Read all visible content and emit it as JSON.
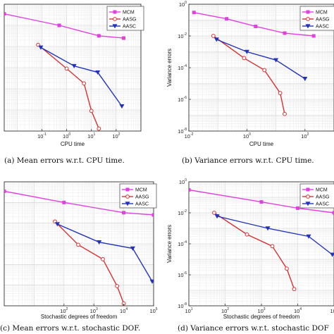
{
  "colors": {
    "MCM": "#e040e0",
    "AASG": "#d93030",
    "AASC": "#2233bb"
  },
  "chart_data": [
    {
      "id": "a",
      "type": "line",
      "caption": "(a) Mean errors w.r.t. CPU time.",
      "xlabel": "CPU time",
      "ylabel": "",
      "xscale": "log",
      "yscale": "log",
      "xlim": [
        0.003,
        1000
      ],
      "ylim": [
        1e-07,
        0.1
      ],
      "xticks": [
        {
          "v": 0.1,
          "b": "10",
          "e": "-1"
        },
        {
          "v": 1,
          "b": "10",
          "e": "0"
        },
        {
          "v": 10,
          "b": "10",
          "e": "1"
        },
        {
          "v": 100,
          "b": "10",
          "e": "2"
        }
      ],
      "yticks": [],
      "legend": "top-right",
      "series": [
        {
          "name": "MCM",
          "marker": "square",
          "x": [
            0.003,
            0.5,
            20,
            200
          ],
          "y": [
            0.035,
            0.01,
            0.0032,
            0.0025
          ]
        },
        {
          "name": "AASG",
          "marker": "circle",
          "x": [
            0.07,
            1,
            5,
            10,
            20
          ],
          "y": [
            0.0012,
            9e-05,
            1.8e-05,
            9e-07,
            1.3e-07
          ]
        },
        {
          "name": "AASC",
          "marker": "triangle",
          "x": [
            0.09,
            2,
            18,
            170
          ],
          "y": [
            0.0009,
            0.00012,
            6e-05,
            1.5e-06
          ]
        }
      ]
    },
    {
      "id": "b",
      "type": "line",
      "caption": "(b) Variance errors w.r.t. CPU time.",
      "xlabel": "CPU time",
      "ylabel": "Variance errors",
      "xscale": "log",
      "yscale": "log",
      "xlim": [
        0.01,
        1000
      ],
      "ylim": [
        1e-08,
        1
      ],
      "xticks": [
        {
          "v": 0.01,
          "b": "10",
          "e": "-2"
        },
        {
          "v": 1,
          "b": "10",
          "e": "0"
        },
        {
          "v": 100,
          "b": "10",
          "e": "2"
        }
      ],
      "yticks": [
        {
          "v": 1,
          "b": "10",
          "e": "0"
        },
        {
          "v": 0.01,
          "b": "10",
          "e": "-2"
        },
        {
          "v": 0.0001,
          "b": "10",
          "e": "-4"
        },
        {
          "v": 1e-06,
          "b": "10",
          "e": "-6"
        },
        {
          "v": 1e-08,
          "b": "10",
          "e": "-8"
        }
      ],
      "legend": "top-right",
      "series": [
        {
          "name": "MCM",
          "marker": "square",
          "x": [
            0.015,
            0.2,
            2,
            20,
            200
          ],
          "y": [
            0.3,
            0.12,
            0.04,
            0.015,
            0.01
          ]
        },
        {
          "name": "AASG",
          "marker": "circle",
          "x": [
            0.07,
            0.8,
            4,
            14,
            20
          ],
          "y": [
            0.01,
            0.0004,
            7e-05,
            2.5e-06,
            1.2e-07
          ]
        },
        {
          "name": "AASC",
          "marker": "triangle",
          "x": [
            0.09,
            1,
            10,
            100
          ],
          "y": [
            0.006,
            0.001,
            0.0003,
            2e-05
          ]
        }
      ]
    },
    {
      "id": "c",
      "type": "line",
      "caption": "(c) Mean errors w.r.t. stochastic DOF.",
      "xlabel": "Stochastic degrees of freedom",
      "ylabel": "",
      "xscale": "log",
      "yscale": "log",
      "xlim": [
        1,
        100000
      ],
      "ylim": [
        1e-07,
        0.1
      ],
      "xticks": [
        {
          "v": 100,
          "b": "10",
          "e": "2"
        },
        {
          "v": 1000,
          "b": "10",
          "e": "3"
        },
        {
          "v": 10000,
          "b": "10",
          "e": "4"
        },
        {
          "v": 100000,
          "b": "10",
          "e": "5"
        }
      ],
      "yticks": [],
      "legend": "top-right",
      "series": [
        {
          "name": "MCM",
          "marker": "square",
          "x": [
            1,
            100,
            10000,
            100000
          ],
          "y": [
            0.035,
            0.01,
            0.0032,
            0.0025
          ]
        },
        {
          "name": "AASG",
          "marker": "circle",
          "x": [
            50,
            300,
            2000,
            6000,
            10000
          ],
          "y": [
            0.0012,
            9e-05,
            1.8e-05,
            9e-07,
            1.3e-07
          ]
        },
        {
          "name": "AASC",
          "marker": "triangle",
          "x": [
            60,
            1500,
            20000,
            90000
          ],
          "y": [
            0.0009,
            0.00012,
            6e-05,
            1.5e-06
          ]
        }
      ]
    },
    {
      "id": "d",
      "type": "line",
      "caption": "(d) Variance errors w.r.t. stochastic DOF",
      "xlabel": "Stochastic degrees of freedom",
      "ylabel": "Variance errors",
      "xscale": "log",
      "yscale": "log",
      "xlim": [
        10,
        100000
      ],
      "ylim": [
        1e-08,
        1
      ],
      "xticks": [
        {
          "v": 10,
          "b": "10",
          "e": "1"
        },
        {
          "v": 100,
          "b": "10",
          "e": "2"
        },
        {
          "v": 1000,
          "b": "10",
          "e": "3"
        },
        {
          "v": 10000,
          "b": "10",
          "e": "4"
        },
        {
          "v": 100000,
          "b": "10",
          "e": "5"
        }
      ],
      "yticks": [
        {
          "v": 1,
          "b": "10",
          "e": "0"
        },
        {
          "v": 0.01,
          "b": "10",
          "e": "-2"
        },
        {
          "v": 0.0001,
          "b": "10",
          "e": "-4"
        },
        {
          "v": 1e-06,
          "b": "10",
          "e": "-6"
        },
        {
          "v": 1e-08,
          "b": "10",
          "e": "-8"
        }
      ],
      "legend": "top-right",
      "series": [
        {
          "name": "MCM",
          "marker": "square",
          "x": [
            10,
            1000,
            10000,
            100000
          ],
          "y": [
            0.3,
            0.05,
            0.02,
            0.01
          ]
        },
        {
          "name": "AASG",
          "marker": "circle",
          "x": [
            50,
            400,
            2000,
            5000,
            8000
          ],
          "y": [
            0.01,
            0.0004,
            7e-05,
            2.5e-06,
            1.2e-07
          ]
        },
        {
          "name": "AASC",
          "marker": "triangle",
          "x": [
            60,
            1500,
            20000,
            90000
          ],
          "y": [
            0.006,
            0.001,
            0.0003,
            2e-05
          ]
        }
      ]
    }
  ]
}
